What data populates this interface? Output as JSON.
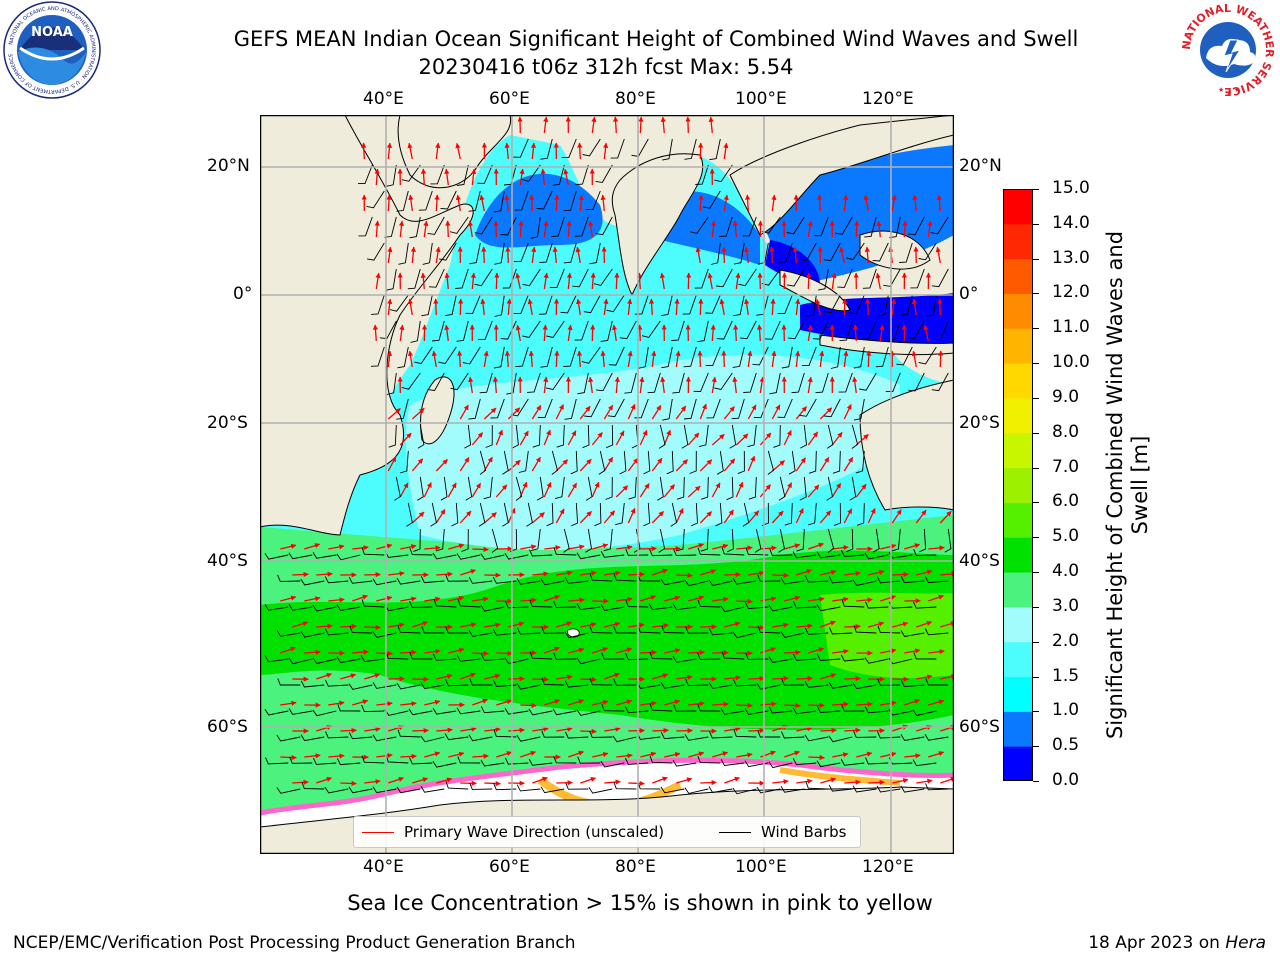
{
  "title": {
    "line1": "GEFS MEAN Indian Ocean Significant Height of Combined Wind Waves and Swell",
    "line2": "20230416 t06z 312h fcst   Max: 5.54"
  },
  "map": {
    "lon_ticks": [
      "40°E",
      "60°E",
      "80°E",
      "100°E",
      "120°E"
    ],
    "lat_ticks": [
      "20°N",
      "0°",
      "20°S",
      "40°S",
      "60°S"
    ],
    "lon_range": [
      20,
      130
    ],
    "lat_range": [
      -72,
      27
    ],
    "projection": "mercator"
  },
  "colorbar": {
    "label": "Significant Height of Combined Wind Waves and Swell [m]",
    "ticks": [
      "0.0",
      "0.5",
      "1.0",
      "1.5",
      "2.0",
      "3.0",
      "4.0",
      "5.0",
      "6.0",
      "7.0",
      "8.0",
      "9.0",
      "10.0",
      "11.0",
      "12.0",
      "13.0",
      "14.0",
      "15.0"
    ],
    "colors": [
      "#0000ff",
      "#0a78ff",
      "#00ffff",
      "#4dfdfd",
      "#a3fcfc",
      "#4bf27d",
      "#00e100",
      "#55f000",
      "#9cf000",
      "#c8f500",
      "#f0f000",
      "#ffd800",
      "#ffb400",
      "#ff8c00",
      "#ff5a00",
      "#ff2800",
      "#ff0000"
    ]
  },
  "legend": {
    "items": [
      {
        "label": "Primary Wave Direction (unscaled)",
        "color": "#ff0000"
      },
      {
        "label": "Wind Barbs",
        "color": "#000000"
      }
    ]
  },
  "footnote": "Sea Ice Concentration > 15% is shown in pink to yellow",
  "credits": {
    "left": "NCEP/EMC/Verification Post Processing Product Generation Branch",
    "right_date": "18 Apr 2023 on ",
    "right_host": "Hera"
  },
  "logos": {
    "left": {
      "icon": "noaa-logo-icon",
      "text": "NOAA"
    },
    "right": {
      "icon": "nws-logo-icon",
      "text": "NATIONAL WEATHER SERVICE"
    }
  },
  "colors": {
    "land": "#efecdc",
    "wave_arrow": "#ff0000",
    "wind_barb": "#000000",
    "grid": "#b0b0b0"
  }
}
